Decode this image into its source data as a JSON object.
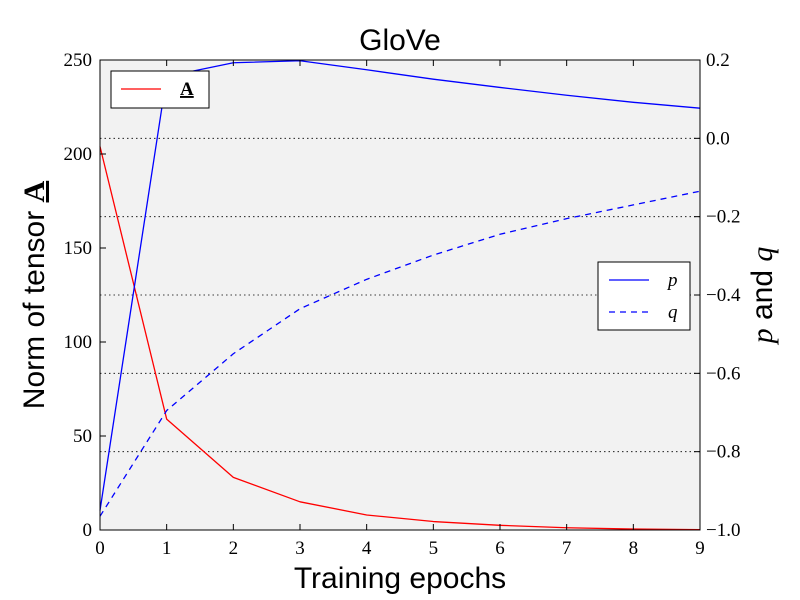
{
  "chart_data": {
    "type": "line",
    "title": "GloVe",
    "xlabel": "Training epochs",
    "ylabel_left": "Norm of tensor A",
    "ylabel_left_prefix": "Norm of tensor ",
    "ylabel_left_symbol": "A",
    "ylabel_right": "p and q",
    "ylabel_right_p": "p",
    "ylabel_right_and": " and ",
    "ylabel_right_q": "q",
    "x": [
      0,
      1,
      2,
      3,
      4,
      5,
      6,
      7,
      8,
      9
    ],
    "xlim": [
      0,
      9
    ],
    "ylim_left": [
      0,
      250
    ],
    "ylim_right": [
      -1.0,
      0.2
    ],
    "x_ticks": [
      "0",
      "1",
      "2",
      "3",
      "4",
      "5",
      "6",
      "7",
      "8",
      "9"
    ],
    "y_ticks_left": [
      "0",
      "50",
      "100",
      "150",
      "200",
      "250"
    ],
    "y_ticks_right": [
      "−1.0",
      "−0.8",
      "−0.6",
      "−0.4",
      "−0.2",
      "0.0",
      "0.2"
    ],
    "grid": "horizontal dotted (right axis ticks)",
    "background_color": "#f2f2f2",
    "series": [
      {
        "name": "A",
        "axis": "left",
        "color": "#ff0000",
        "style": "solid",
        "values": [
          204,
          59,
          28,
          15,
          8,
          4.5,
          2.5,
          1.2,
          0.5,
          0.2
        ]
      },
      {
        "name": "p",
        "axis": "right",
        "color": "#0000ff",
        "style": "solid",
        "values": [
          -0.95,
          0.158,
          0.193,
          0.198,
          0.175,
          0.151,
          0.13,
          0.11,
          0.092,
          0.077
        ]
      },
      {
        "name": "q",
        "axis": "right",
        "color": "#0000ff",
        "style": "dashed",
        "values": [
          -0.965,
          -0.695,
          -0.55,
          -0.435,
          -0.36,
          -0.298,
          -0.245,
          -0.205,
          -0.17,
          -0.135
        ]
      }
    ],
    "legends": [
      {
        "placement": "top-left",
        "entries": [
          "A"
        ]
      },
      {
        "placement": "center-right",
        "entries": [
          "p",
          "q"
        ]
      }
    ]
  }
}
